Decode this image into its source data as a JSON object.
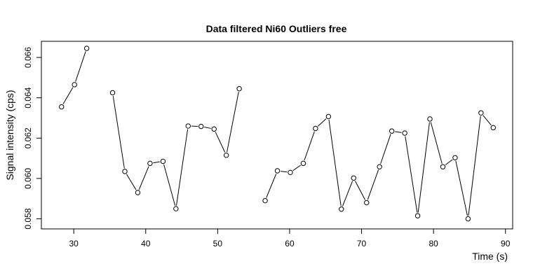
{
  "chart_data": {
    "type": "line",
    "title": "Data filtered Ni60 Outliers free",
    "xlabel": "Time (s)",
    "ylabel": "Signal intensity (cps)",
    "xlim": [
      25.5,
      91
    ],
    "ylim": [
      0.0575,
      0.0668
    ],
    "xticks": [
      30,
      40,
      50,
      60,
      70,
      80,
      90
    ],
    "yticks": [
      0.058,
      0.06,
      0.062,
      0.064,
      0.066
    ],
    "ytick_labels": [
      "0.058",
      "0.060",
      "0.062",
      "0.064",
      "0.066"
    ],
    "grid": false,
    "point_style": "open-circle",
    "series": [
      {
        "segments": [
          [
            {
              "x": 28.3,
              "y": 0.06355
            },
            {
              "x": 30.1,
              "y": 0.06465
            },
            {
              "x": 31.8,
              "y": 0.06645
            }
          ],
          [
            {
              "x": 35.4,
              "y": 0.06425
            },
            {
              "x": 37.1,
              "y": 0.06035
            },
            {
              "x": 38.9,
              "y": 0.0593
            },
            {
              "x": 40.6,
              "y": 0.06075
            },
            {
              "x": 42.4,
              "y": 0.06085
            },
            {
              "x": 44.2,
              "y": 0.0585
            },
            {
              "x": 45.9,
              "y": 0.0626
            },
            {
              "x": 47.7,
              "y": 0.06258
            },
            {
              "x": 49.5,
              "y": 0.06245
            },
            {
              "x": 51.2,
              "y": 0.06115
            },
            {
              "x": 53.0,
              "y": 0.06445
            }
          ],
          [
            {
              "x": 56.6,
              "y": 0.0589
            },
            {
              "x": 58.3,
              "y": 0.06038
            },
            {
              "x": 60.1,
              "y": 0.0603
            },
            {
              "x": 61.9,
              "y": 0.06075
            },
            {
              "x": 63.6,
              "y": 0.06248
            },
            {
              "x": 65.4,
              "y": 0.06307
            },
            {
              "x": 67.2,
              "y": 0.05848
            },
            {
              "x": 68.9,
              "y": 0.06002
            },
            {
              "x": 70.7,
              "y": 0.0588
            },
            {
              "x": 72.5,
              "y": 0.06058
            },
            {
              "x": 74.2,
              "y": 0.06235
            },
            {
              "x": 76.0,
              "y": 0.06225
            },
            {
              "x": 77.8,
              "y": 0.05815
            },
            {
              "x": 79.5,
              "y": 0.06295
            },
            {
              "x": 81.3,
              "y": 0.06058
            },
            {
              "x": 83.0,
              "y": 0.06103
            },
            {
              "x": 84.8,
              "y": 0.058
            },
            {
              "x": 86.6,
              "y": 0.06325
            },
            {
              "x": 88.3,
              "y": 0.06252
            }
          ]
        ]
      }
    ]
  }
}
